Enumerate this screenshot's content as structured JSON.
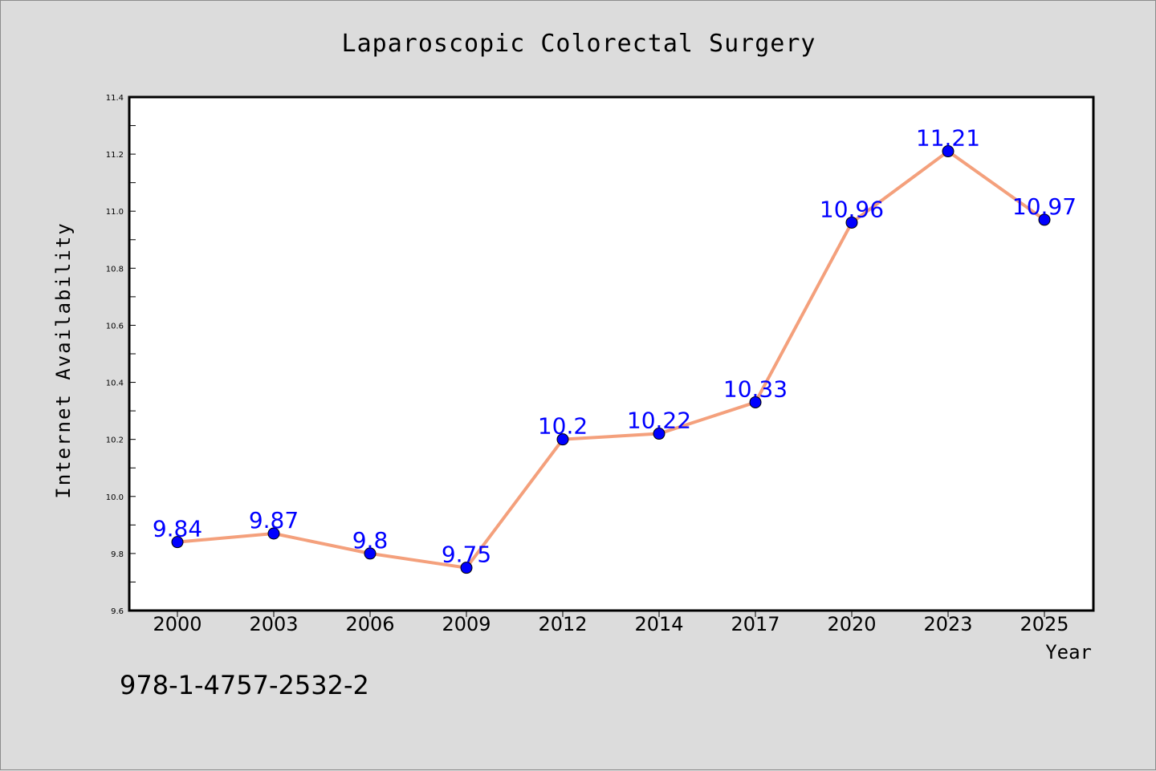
{
  "chart_data": {
    "type": "line",
    "title": "Laparoscopic Colorectal Surgery",
    "xlabel": "Year",
    "ylabel": "Internet Availability",
    "categories": [
      "2000",
      "2003",
      "2006",
      "2009",
      "2012",
      "2014",
      "2017",
      "2020",
      "2023",
      "2025"
    ],
    "series": [
      {
        "values": [
          9.84,
          9.87,
          9.8,
          9.75,
          10.2,
          10.22,
          10.33,
          10.96,
          11.21,
          10.97
        ],
        "data_labels": [
          "9.84",
          "9.87",
          "9.8",
          "9.75",
          "10.2",
          "10.22",
          "10.33",
          "10.96",
          "11.21",
          "10.97"
        ],
        "line_color": "#f4a07c",
        "marker_color": "#0000ff"
      }
    ],
    "ylim": [
      9.6,
      11.4
    ],
    "yticks": [
      "9.6",
      "9.8",
      "10.0",
      "10.2",
      "10.4",
      "10.6",
      "10.8",
      "11.0",
      "11.2",
      "11.4"
    ],
    "grid": false,
    "legend": "none"
  },
  "annotation": "978-1-4757-2532-2",
  "colors": {
    "background": "#dcdcdc",
    "plot_background": "#ffffff",
    "axes": "#000000",
    "label_text": "#0000ff"
  }
}
